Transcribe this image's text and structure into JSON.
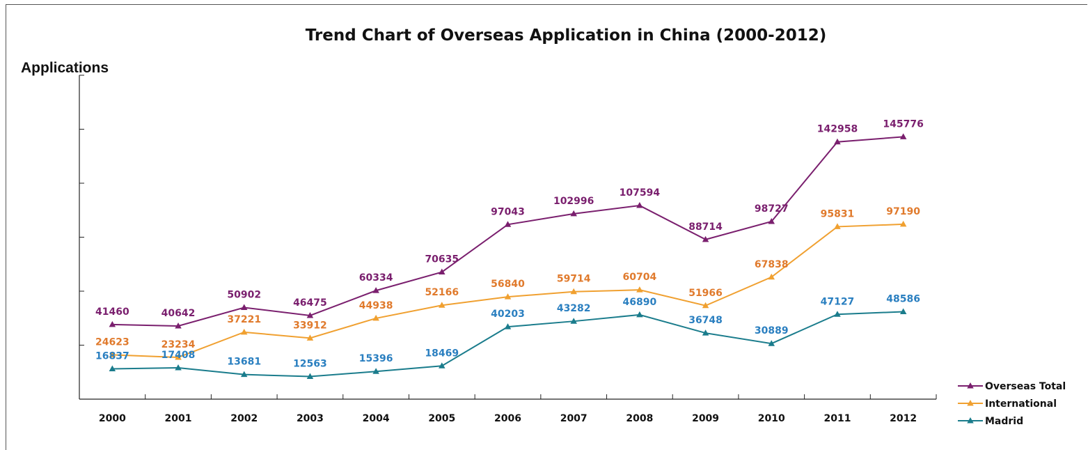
{
  "chart_data": {
    "type": "line",
    "title": "Trend Chart of Overseas Application in China (2000-2012)",
    "ylabel": "Applications",
    "xlabel": "",
    "ylim": [
      0,
      180000
    ],
    "grid": false,
    "legend_position": "bottom-right",
    "categories": [
      "2000",
      "2001",
      "2002",
      "2003",
      "2004",
      "2005",
      "2006",
      "2007",
      "2008",
      "2009",
      "2010",
      "2011",
      "2012"
    ],
    "series": [
      {
        "name": "Overseas Total",
        "color": "#7a1f6e",
        "marker": "triangle",
        "values": [
          41460,
          40642,
          50902,
          46475,
          60334,
          70635,
          97043,
          102996,
          107594,
          88714,
          98727,
          142958,
          145776
        ]
      },
      {
        "name": "International",
        "color": "#f0a030",
        "label_color": "#e07a2c",
        "marker": "triangle",
        "values": [
          24623,
          23234,
          37221,
          33912,
          44938,
          52166,
          56840,
          59714,
          60704,
          51966,
          67838,
          95831,
          97190
        ]
      },
      {
        "name": "Madrid",
        "color": "#1a7c8c",
        "label_color": "#2a7fc0",
        "marker": "triangle",
        "values": [
          16837,
          17408,
          13681,
          12563,
          15396,
          18469,
          40203,
          43282,
          46890,
          36748,
          30889,
          47127,
          48586
        ]
      }
    ]
  }
}
